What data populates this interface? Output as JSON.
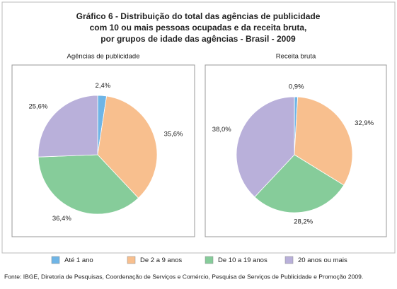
{
  "title": [
    "Gráfico 6 - Distribuição do total das agências de publicidade",
    "com 10 ou mais pessoas ocupadas e da receita bruta,",
    "por grupos de idade das agências - Brasil - 2009"
  ],
  "categories": [
    "Até 1 ano",
    "De 2 a 9 anos",
    "De 10 a 19 anos",
    "20 anos ou mais"
  ],
  "colors": [
    "#6fb5e6",
    "#f8bf8e",
    "#86cc9a",
    "#b9b0da"
  ],
  "chart_data": [
    {
      "type": "pie",
      "title": "Agências de publicidade",
      "values": [
        2.4,
        35.6,
        36.4,
        25.6
      ],
      "value_labels": [
        "2,4%",
        "35,6%",
        "36,4%",
        "25,6%"
      ]
    },
    {
      "type": "pie",
      "title": "Receita bruta",
      "values": [
        0.9,
        32.9,
        28.2,
        38.0
      ],
      "value_labels": [
        "0,9%",
        "32,9%",
        "28,2%",
        "38,0%"
      ]
    }
  ],
  "source": "Fonte: IBGE, Diretoria de Pesquisas, Coordenação de Serviços e Comércio, Pesquisa de Serviços de Publicidade e Promoção 2009."
}
